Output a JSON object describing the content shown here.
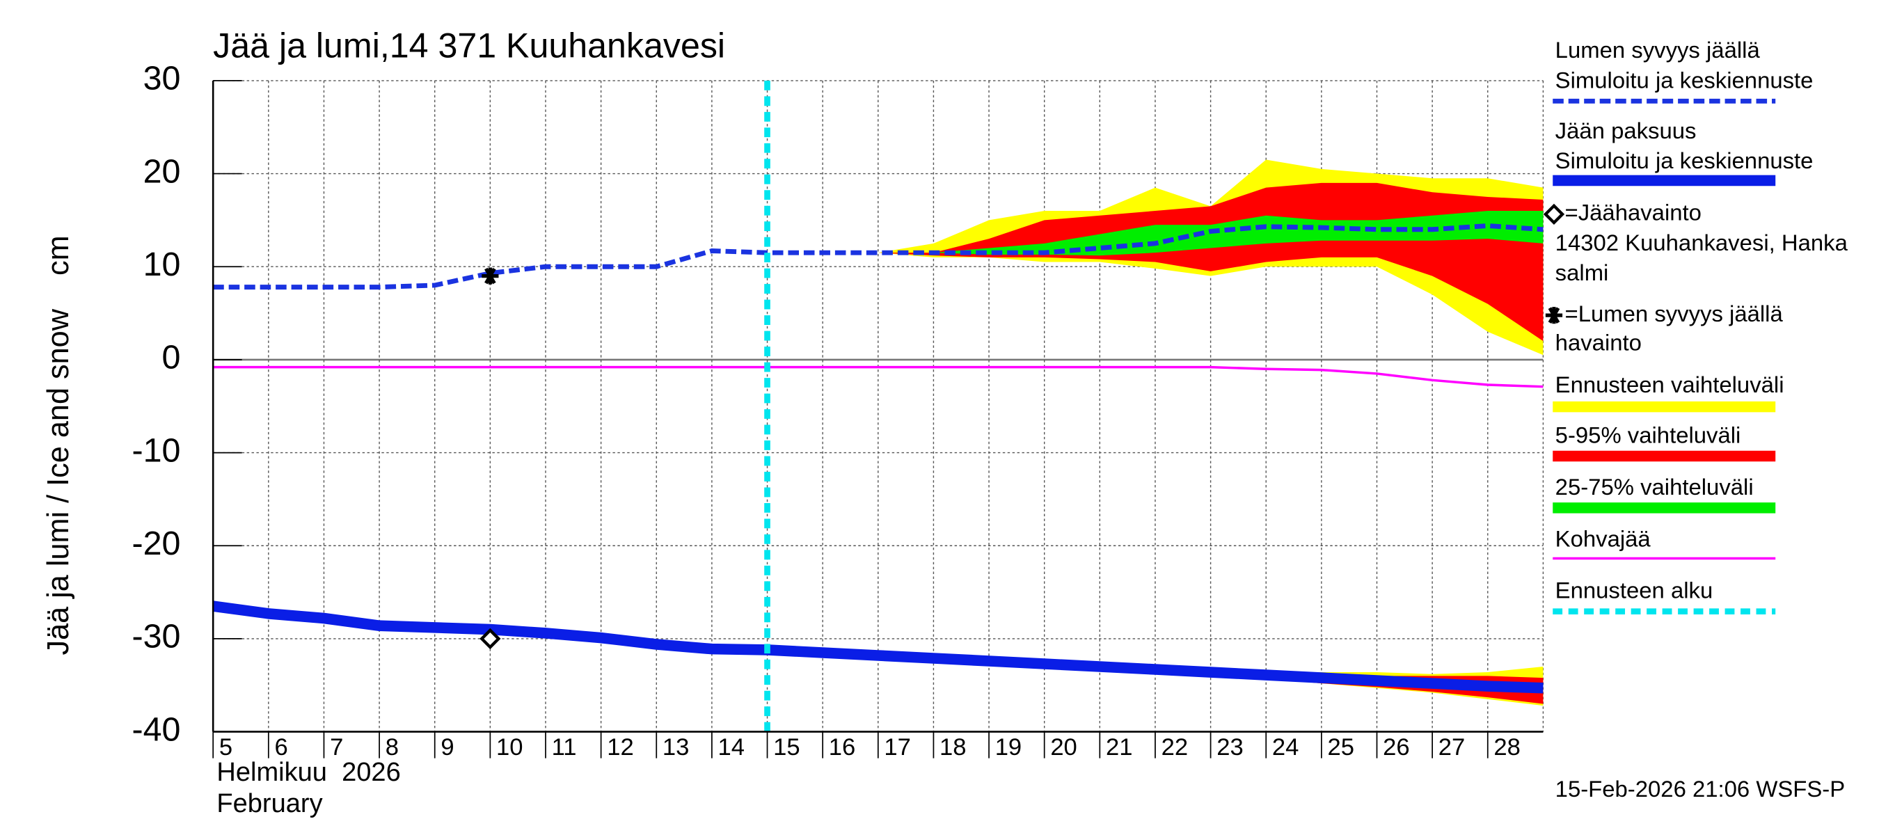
{
  "chart_data": {
    "type": "line",
    "title": "Jää ja lumi,14 371 Kuuhankavesi",
    "y_label": "Jää ja lumi / Ice and snow    cm",
    "x_label": "Helmikuu  2026",
    "x_label_2": "February",
    "footer": "15-Feb-2026 21:06 WSFS-P",
    "xlim": [
      5,
      29
    ],
    "xticks": [
      5,
      6,
      7,
      8,
      9,
      10,
      11,
      12,
      13,
      14,
      15,
      16,
      17,
      18,
      19,
      20,
      21,
      22,
      23,
      24,
      25,
      26,
      27,
      28
    ],
    "ylim": [
      -40,
      30
    ],
    "yticks": [
      -40,
      -30,
      -20,
      -10,
      0,
      10,
      20,
      30
    ],
    "grid": true,
    "x": [
      5,
      6,
      7,
      8,
      9,
      10,
      11,
      12,
      13,
      14,
      15,
      16,
      17,
      18,
      19,
      20,
      21,
      22,
      23,
      24,
      25,
      26,
      27,
      28,
      29
    ],
    "series": [
      {
        "name": [
          "Lumen syvyys jäällä",
          "Simuloitu ja keskiennuste"
        ],
        "color": "#1a33e0",
        "style": "dashed",
        "values": [
          7.8,
          7.8,
          7.8,
          7.8,
          8,
          9.3,
          10,
          10,
          10,
          11.7,
          11.5,
          11.5,
          11.5,
          11.5,
          11.5,
          11.5,
          12,
          12.5,
          13.8,
          14.3,
          14.2,
          14,
          14,
          14.4,
          14
        ]
      },
      {
        "name": [
          "Jään paksuus",
          "Simuloitu ja keskiennuste"
        ],
        "color": "#0a1ee6",
        "style": "solid",
        "values": [
          -26.5,
          -27.3,
          -27.8,
          -28.6,
          -28.8,
          -29,
          -29.4,
          -29.9,
          -30.6,
          -31.1,
          -31.2,
          -31.5,
          -31.8,
          -32.1,
          -32.4,
          -32.7,
          -33,
          -33.3,
          -33.6,
          -33.9,
          -34.2,
          -34.5,
          -34.8,
          -35.1,
          -35.3
        ]
      },
      {
        "name": [
          "Kohvajää"
        ],
        "color": "#ff00ff",
        "style": "thin",
        "values": [
          -0.8,
          -0.8,
          -0.8,
          -0.8,
          -0.8,
          -0.8,
          -0.8,
          -0.8,
          -0.8,
          -0.8,
          -0.8,
          -0.8,
          -0.8,
          -0.8,
          -0.8,
          -0.8,
          -0.8,
          -0.8,
          -0.8,
          -1,
          -1.1,
          -1.5,
          -2.2,
          -2.7,
          -2.9
        ]
      }
    ],
    "bands": [
      {
        "name": "Ennusteen vaihteluväli",
        "color": "#ffff00",
        "parts": [
          {
            "x": [
              17,
              18,
              19,
              20,
              21,
              22,
              23,
              24,
              25,
              26,
              27,
              28,
              29
            ],
            "low": [
              11.5,
              11,
              11,
              10.5,
              10.5,
              9.8,
              9,
              10,
              10,
              10,
              7,
              3,
              0.5
            ],
            "high": [
              11.5,
              12.5,
              15,
              16,
              16,
              18.5,
              16.5,
              21.5,
              20.5,
              20,
              19.5,
              19.5,
              18.5
            ]
          },
          {
            "x": [
              21,
              22,
              23,
              24,
              25,
              26,
              27,
              28,
              29
            ],
            "low": [
              -33.2,
              -33.5,
              -33.8,
              -34.2,
              -34.8,
              -35.3,
              -35.8,
              -36.5,
              -37.2
            ],
            "high": [
              -33,
              -33.2,
              -33.4,
              -33.6,
              -33.6,
              -33.6,
              -33.8,
              -33.6,
              -33
            ]
          }
        ]
      },
      {
        "name": "5-95% vaihteluväli",
        "color": "#ff0000",
        "parts": [
          {
            "x": [
              17,
              18,
              19,
              20,
              21,
              22,
              23,
              24,
              25,
              26,
              27,
              28,
              29
            ],
            "low": [
              11.5,
              11.2,
              11,
              11,
              10.8,
              10.5,
              9.5,
              10.5,
              11,
              11,
              9,
              6,
              2
            ],
            "high": [
              11.5,
              11.5,
              13,
              15,
              15.5,
              16,
              16.5,
              18.5,
              19,
              19,
              18,
              17.5,
              17.2
            ]
          },
          {
            "x": [
              21,
              22,
              23,
              24,
              25,
              26,
              27,
              28,
              29
            ],
            "low": [
              -33.2,
              -33.5,
              -33.9,
              -34.3,
              -34.8,
              -35.2,
              -35.7,
              -36.3,
              -37
            ],
            "high": [
              -33,
              -33.2,
              -33.4,
              -33.6,
              -33.8,
              -34,
              -34,
              -34,
              -34.2
            ]
          }
        ]
      },
      {
        "name": "25-75% vaihteluväli",
        "color": "#00ee00",
        "parts": [
          {
            "x": [
              17,
              18,
              19,
              20,
              21,
              22,
              23,
              24,
              25,
              26,
              27,
              28,
              29
            ],
            "low": [
              11.5,
              11.5,
              11.3,
              11.3,
              11.2,
              11.5,
              12,
              12.5,
              12.8,
              12.8,
              12.8,
              13,
              12.5
            ],
            "high": [
              11.5,
              11.5,
              12,
              12.5,
              13.5,
              14.5,
              14.5,
              15.5,
              15,
              15,
              15.5,
              16,
              16
            ]
          }
        ]
      }
    ],
    "observations": [
      {
        "name": [
          "=Jäähavainto",
          "14302 Kuuhankavesi, Hanka",
          "salmi"
        ],
        "marker": "diamond",
        "x": 10,
        "y": -30
      },
      {
        "name": [
          "=Lumen syvyys jäällä",
          "havainto"
        ],
        "marker": "star",
        "x": 10,
        "y": 9
      }
    ],
    "forecast_start": {
      "name": [
        "Ennusteen alku"
      ],
      "color": "#00e5ee",
      "x": 15
    }
  }
}
